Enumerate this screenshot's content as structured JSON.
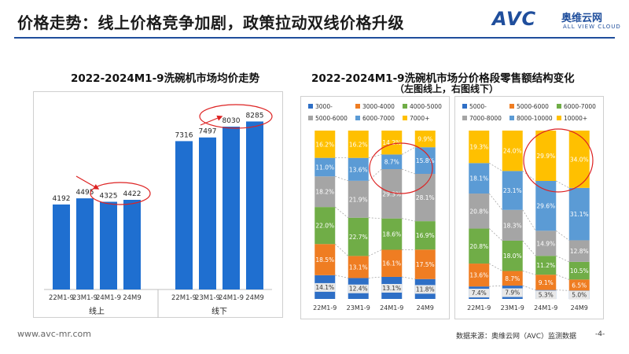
{
  "header": {
    "title": "价格走势：线上价格竞争加剧，政策拉动双线价格升级",
    "logo_mark": "AVC",
    "logo_cn": "奥维云网",
    "logo_en": "ALL VIEW CLOUD"
  },
  "footer": {
    "url": "www.avc-mr.com",
    "source": "数据来源：奥维云网（AVC）监测数据",
    "page": "-4-"
  },
  "chart_data": [
    {
      "type": "bar",
      "title": "2022-2024M1-9洗碗机市场均价走势",
      "categories": [
        "22M1-9",
        "23M1-9",
        "24M1-9",
        "24M9",
        "22M1-9",
        "23M1-9",
        "24M1-9",
        "24M9"
      ],
      "groups": [
        {
          "label": "线上",
          "from": 0,
          "to": 3
        },
        {
          "label": "线下",
          "from": 4,
          "to": 7
        }
      ],
      "values": [
        4192,
        4495,
        4325,
        4422,
        7316,
        7497,
        8030,
        8285
      ],
      "ylim": [
        0,
        9000
      ],
      "bar_color": "#1f6fd0",
      "grid": false
    },
    {
      "type": "bar",
      "stacked": true,
      "percent": true,
      "title": "2022-2024M1-9洗碗机市场分价格段零售额结构变化",
      "subtitle": "（左图线上，右图线下）",
      "panels": [
        {
          "categories": [
            "22M1-9",
            "23M1-9",
            "24M1-9",
            "24M9"
          ],
          "legend": [
            "3000-",
            "3000-4000",
            "4000-5000",
            "5000-6000",
            "6000-7000",
            "7000+"
          ],
          "legend_placement": "top",
          "series": [
            {
              "name": "3000-",
              "color": "#2e6fc6",
              "values": [
                14.1,
                12.4,
                13.1,
                11.8
              ]
            },
            {
              "name": "3000-4000",
              "color": "#ef7d22",
              "values": [
                18.5,
                13.1,
                16.1,
                17.5
              ]
            },
            {
              "name": "4000-5000",
              "color": "#70ad47",
              "values": [
                22.0,
                22.7,
                18.6,
                16.9
              ]
            },
            {
              "name": "5000-6000",
              "color": "#a5a5a5",
              "values": [
                18.2,
                21.9,
                29.3,
                28.1
              ]
            },
            {
              "name": "6000-7000",
              "color": "#5b9bd5",
              "values": [
                11.0,
                13.6,
                8.7,
                15.8
              ]
            },
            {
              "name": "7000+",
              "color": "#ffc000",
              "values": [
                16.2,
                16.2,
                14.2,
                9.9
              ]
            }
          ],
          "labels": {
            "3000-": [
              "14.1%",
              "12.4%",
              "13.1%",
              "11.8%"
            ],
            "3000-4000": [
              "18.5%",
              "13.1%",
              "16.1%",
              "17.5%"
            ],
            "4000-5000": [
              "22.0%",
              "22.7%",
              "18.6%",
              "16.9%"
            ],
            "5000-6000": [
              "18.2%",
              "21.9%",
              "29.3%",
              "28.1%"
            ],
            "6000-7000": [
              "11.0%",
              "13.6%",
              "8.7%",
              "15.8%"
            ],
            "7000+": [
              "16.2%",
              "16.2%",
              "14.2%",
              "9.9%"
            ]
          }
        },
        {
          "categories": [
            "22M1-9",
            "23M1-9",
            "24M1-9",
            "24M9"
          ],
          "legend": [
            "5000-",
            "5000-6000",
            "6000-7000",
            "7000-8000",
            "8000-10000",
            "10000+"
          ],
          "legend_placement": "top",
          "series": [
            {
              "name": "5000-",
              "color": "#2e6fc6",
              "values": [
                7.4,
                7.9,
                5.3,
                5.0
              ]
            },
            {
              "name": "5000-6000",
              "color": "#ef7d22",
              "values": [
                13.6,
                8.7,
                9.1,
                6.5
              ]
            },
            {
              "name": "6000-7000",
              "color": "#70ad47",
              "values": [
                20.8,
                18.0,
                11.2,
                10.5
              ]
            },
            {
              "name": "7000-8000",
              "color": "#a5a5a5",
              "values": [
                20.8,
                18.3,
                14.9,
                12.8
              ]
            },
            {
              "name": "8000-10000",
              "color": "#5b9bd5",
              "values": [
                18.1,
                23.1,
                29.6,
                31.1
              ]
            },
            {
              "name": "10000+",
              "color": "#ffc000",
              "values": [
                19.3,
                24.0,
                29.9,
                34.0
              ]
            }
          ],
          "labels": {
            "5000-": [
              "7.4%",
              "7.9%",
              "5.3%",
              "5.0%"
            ],
            "5000-6000": [
              "13.6%",
              "8.7%",
              "9.1%",
              "6.5%"
            ],
            "6000-7000": [
              "20.8%",
              "18.0%",
              "11.2%",
              "10.5%"
            ],
            "7000-8000": [
              "20.8%",
              "18.3%",
              "14.9%",
              "12.8%"
            ],
            "8000-10000": [
              "18.1%",
              "23.1%",
              "29.6%",
              "31.1%"
            ],
            "10000+": [
              "19.3%",
              "24.0%",
              "29.9%",
              "34.0%"
            ]
          }
        }
      ]
    }
  ]
}
